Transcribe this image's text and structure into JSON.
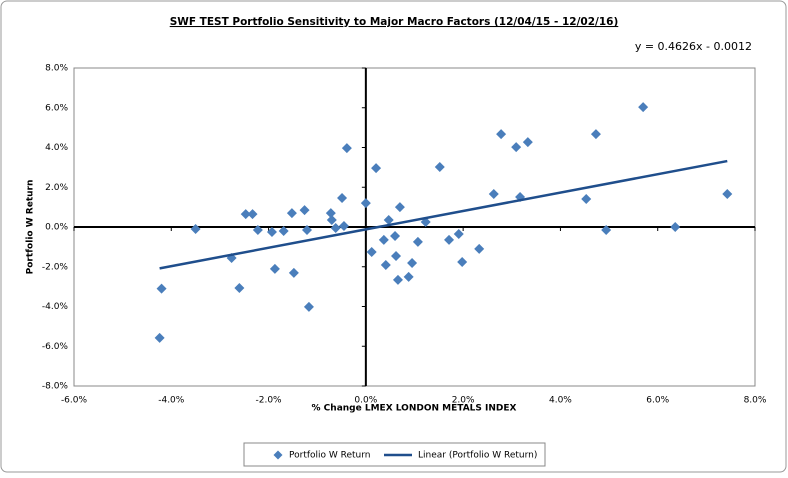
{
  "chart_data": {
    "type": "scatter",
    "title": "SWF TEST Portfolio Sensitivity to Major Macro Factors (12/04/15 - 12/02/16)",
    "x_label": "% Change LMEX LONDON METALS INDEX",
    "y_label": "Portfolio W Return",
    "xlim": [
      -6,
      8
    ],
    "ylim": [
      -8,
      8
    ],
    "xticks": [
      {
        "value": -6,
        "label": "-6.0%"
      },
      {
        "value": -4,
        "label": "-4.0%"
      },
      {
        "value": -2,
        "label": "-2.0%"
      },
      {
        "value": 0,
        "label": "0.0%"
      },
      {
        "value": 2,
        "label": "2.0%"
      },
      {
        "value": 4,
        "label": "4.0%"
      },
      {
        "value": 6,
        "label": "6.0%"
      },
      {
        "value": 8,
        "label": "8.0%"
      }
    ],
    "yticks": [
      {
        "value": -8,
        "label": "-8.0%"
      },
      {
        "value": -6,
        "label": "-6.0%"
      },
      {
        "value": -4,
        "label": "-4.0%"
      },
      {
        "value": -2,
        "label": "-2.0%"
      },
      {
        "value": 0,
        "label": "0.0%"
      },
      {
        "value": 2,
        "label": "2.0%"
      },
      {
        "value": 4,
        "label": "4.0%"
      },
      {
        "value": 6,
        "label": "6.0%"
      },
      {
        "value": 8,
        "label": "8.0%"
      }
    ],
    "grid": false,
    "legend": "bottom",
    "series": [
      {
        "name": "Portfolio W Return",
        "color": "#4a7ebb",
        "x": [
          -4.24,
          -4.2,
          -3.5,
          -2.76,
          -2.6,
          -2.47,
          -2.33,
          -2.22,
          -1.93,
          -1.87,
          -1.69,
          -1.52,
          -1.48,
          -1.26,
          -1.21,
          -1.17,
          -0.72,
          -0.7,
          -0.62,
          -0.49,
          -0.45,
          -0.39,
          0,
          0.12,
          0.21,
          0.37,
          0.41,
          0.47,
          0.6,
          0.62,
          0.66,
          0.7,
          0.88,
          0.95,
          1.07,
          1.23,
          1.52,
          1.71,
          1.91,
          1.98,
          2.33,
          2.63,
          2.78,
          3.09,
          3.17,
          3.33,
          4.53,
          4.73,
          4.94,
          5.7,
          6.36,
          7.43
        ],
        "values": [
          -5.58,
          -3.1,
          -0.1,
          -1.56,
          -3.07,
          0.65,
          0.65,
          -0.15,
          -0.25,
          -2.11,
          -0.2,
          0.7,
          -2.31,
          0.85,
          -0.15,
          -4.02,
          0.7,
          0.35,
          -0.05,
          1.46,
          0.05,
          3.97,
          1.2,
          -1.26,
          2.96,
          -0.65,
          -1.91,
          0.35,
          -0.45,
          -1.46,
          -2.66,
          1.0,
          -2.51,
          -1.81,
          -0.75,
          0.25,
          3.02,
          -0.65,
          -0.35,
          -1.76,
          -1.1,
          1.66,
          4.67,
          4.02,
          1.51,
          4.27,
          1.41,
          4.67,
          -0.15,
          6.03,
          0,
          1.66
        ]
      }
    ],
    "trendline": {
      "name": "Linear (Portfolio W Return)",
      "color": "#1f4e8c",
      "slope": 0.4626,
      "intercept": -0.12,
      "label": "y = 0.4626x - 0.0012"
    }
  }
}
